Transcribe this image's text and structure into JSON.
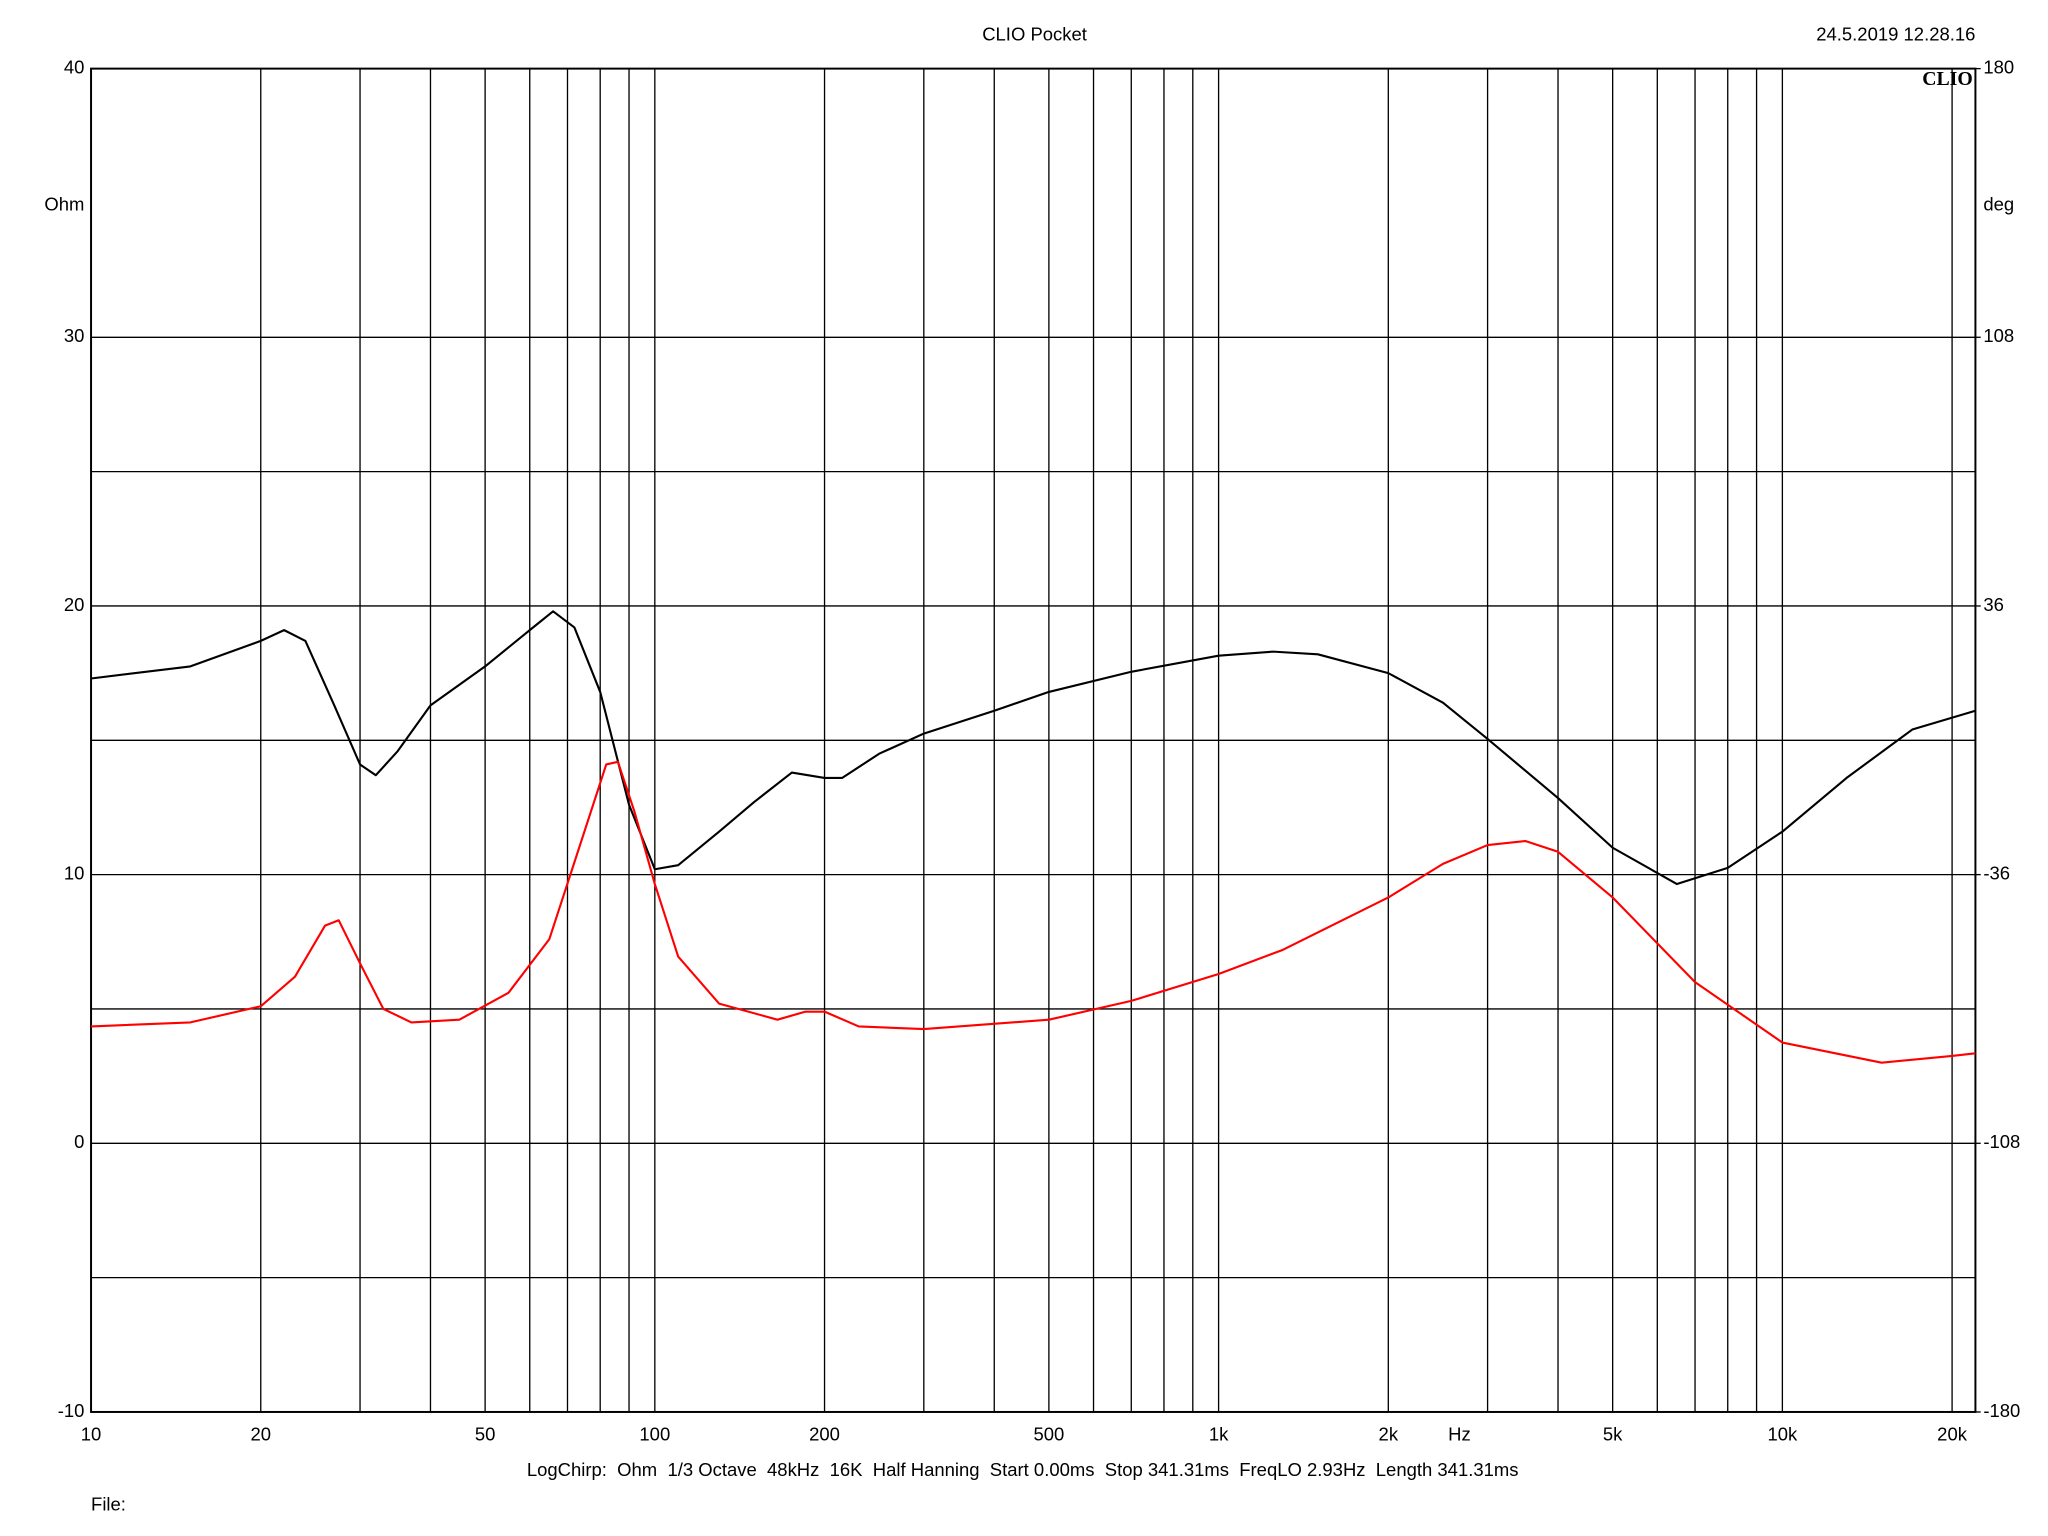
{
  "chart_data": {
    "type": "line",
    "title": "CLIO Pocket",
    "timestamp": "24.5.2019 12.28.16",
    "logo": "CLIO",
    "ylabel": "Ohm",
    "y2label": "deg",
    "xlabel": "Hz",
    "footer": "LogChirp:  Ohm  1/3 Octave  48kHz  16K  Half Hanning  Start 0.00ms  Stop 341.31ms  FreqLO 2.93Hz  Length 341.31ms",
    "file_label": "File:",
    "xscale": "log",
    "xlim": [
      10,
      22000
    ],
    "xticks": [
      10,
      20,
      50,
      100,
      200,
      500,
      {
        "value": 1000,
        "label": "1k"
      },
      {
        "value": 2000,
        "label": "2k"
      },
      {
        "value": 5000,
        "label": "5k"
      },
      {
        "value": 10000,
        "label": "10k"
      },
      {
        "value": 20000,
        "label": "20k"
      }
    ],
    "xgrid": [
      30,
      40,
      60,
      70,
      80,
      90,
      300,
      400,
      600,
      700,
      800,
      900,
      3000,
      4000,
      6000,
      7000,
      8000,
      9000
    ],
    "ylim": [
      -10,
      40
    ],
    "yticks": [
      -10,
      0,
      10,
      20,
      30,
      40
    ],
    "ygrid": [
      -5,
      5,
      15,
      25
    ],
    "y2lim": [
      -180,
      180
    ],
    "y2ticks": [
      -180,
      -108,
      -36,
      36,
      108,
      180
    ],
    "grid": true,
    "series": [
      {
        "color": "#000000",
        "x": [
          10,
          15,
          20,
          22,
          24,
          27,
          30,
          32,
          35,
          40,
          50,
          60,
          66,
          72,
          80,
          90,
          100,
          110,
          130,
          150,
          175,
          200,
          215,
          250,
          300,
          400,
          500,
          700,
          1000,
          1250,
          1500,
          2000,
          2500,
          3000,
          4000,
          5000,
          6500,
          8000,
          10000,
          13000,
          17000,
          22000
        ],
        "values": [
          17.3,
          17.75,
          18.7,
          19.1,
          18.7,
          16.3,
          14.1,
          13.7,
          14.6,
          16.3,
          17.75,
          19.1,
          19.8,
          19.2,
          16.8,
          12.6,
          10.2,
          10.35,
          11.6,
          12.7,
          13.8,
          13.6,
          13.6,
          14.5,
          15.25,
          16.1,
          16.8,
          17.55,
          18.15,
          18.3,
          18.2,
          17.5,
          16.4,
          15.05,
          12.85,
          11.0,
          9.65,
          10.25,
          11.6,
          13.6,
          15.4,
          16.1
        ]
      },
      {
        "color": "#ff0000",
        "x": [
          10,
          15,
          20,
          23,
          26,
          27.5,
          30,
          33,
          37,
          45,
          55,
          65,
          75,
          82,
          86,
          92,
          100,
          110,
          130,
          165,
          185,
          200,
          230,
          300,
          500,
          700,
          1000,
          1300,
          2000,
          2500,
          3000,
          3500,
          4000,
          5000,
          7000,
          10000,
          15000,
          20000,
          22000
        ],
        "values": [
          4.35,
          4.5,
          5.1,
          6.2,
          8.1,
          8.3,
          6.7,
          5.0,
          4.5,
          4.6,
          5.6,
          7.6,
          11.6,
          14.1,
          14.2,
          12.35,
          9.65,
          6.95,
          5.2,
          4.6,
          4.9,
          4.9,
          4.35,
          4.25,
          4.6,
          5.3,
          6.3,
          7.2,
          9.15,
          10.4,
          11.1,
          11.25,
          10.85,
          9.15,
          6.0,
          3.75,
          3.0,
          3.25,
          3.35
        ]
      }
    ]
  }
}
